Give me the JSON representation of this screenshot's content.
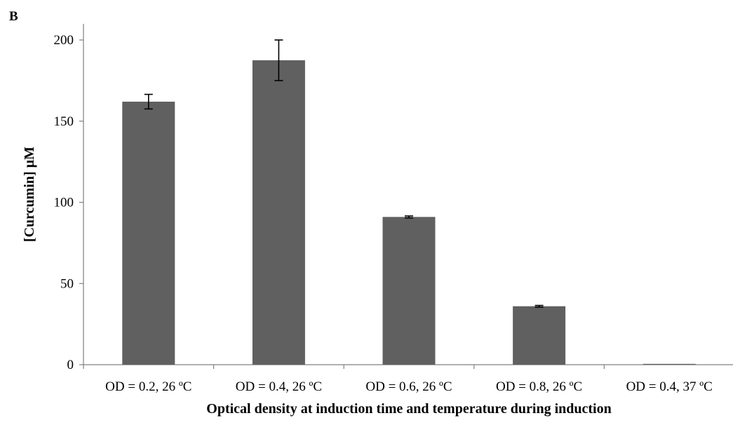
{
  "panel_label": "B",
  "chart_data": {
    "type": "bar",
    "title": "",
    "xlabel": "Optical density at induction time and temperature during induction",
    "ylabel": "[Curcumin] µM",
    "categories": [
      "OD = 0.2, 26 ºC",
      "OD = 0.4, 26 ºC",
      "OD = 0.6, 26 ºC",
      "OD = 0.8, 26 ºC",
      "OD = 0.4, 37 ºC"
    ],
    "values": [
      162,
      187.5,
      91,
      36,
      0.5
    ],
    "errors": [
      4.5,
      12.5,
      0.6,
      0.5,
      0
    ],
    "ylim": [
      0,
      210
    ],
    "yticks": [
      0,
      50,
      100,
      150,
      200
    ],
    "grid": false,
    "bar_color": "#606060"
  }
}
